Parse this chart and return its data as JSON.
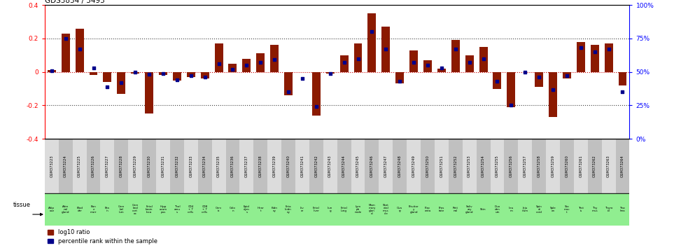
{
  "title": "GDS3834 / 3493",
  "gsm_ids": [
    "GSM373223",
    "GSM373224",
    "GSM373225",
    "GSM373226",
    "GSM373227",
    "GSM373228",
    "GSM373229",
    "GSM373230",
    "GSM373231",
    "GSM373232",
    "GSM373233",
    "GSM373234",
    "GSM373235",
    "GSM373236",
    "GSM373237",
    "GSM373238",
    "GSM373239",
    "GSM373240",
    "GSM373241",
    "GSM373242",
    "GSM373243",
    "GSM373244",
    "GSM373245",
    "GSM373246",
    "GSM373247",
    "GSM373248",
    "GSM373249",
    "GSM373250",
    "GSM373251",
    "GSM373252",
    "GSM373253",
    "GSM373254",
    "GSM373255",
    "GSM373256",
    "GSM373257",
    "GSM373258",
    "GSM373259",
    "GSM373260",
    "GSM373261",
    "GSM373262",
    "GSM373263",
    "GSM373264"
  ],
  "tissues": [
    "Adip\nose",
    "Adre\nnal\ngland",
    "Blad\nder",
    "Bon\ne\nmarr",
    "Bra\nin",
    "Cere\nbel\nlum",
    "Cere\nbral\ncort\nex",
    "Fetal\nbrain\nloca",
    "Hipp\nocam\npus",
    "Thal\namu\ns",
    "CD4\n+ T\ncells",
    "CD8\n+ T\ncells",
    "Cerv\nix",
    "Colo\nn",
    "Epid\ndym\ns",
    "Hear\nt",
    "Kidn\ney",
    "Feta\nlkidn\ney",
    "Liv\ner",
    "Fetal\nliver",
    "Lun\ng",
    "Fetal\nlung",
    "Lym\nph\nnode",
    "Mam\nmary\nglan\nd",
    "Sket\netal\nmus\ncle",
    "Ova\nry",
    "Pituitar\ny\ngland",
    "Plac\nenta",
    "Pros\ntate",
    "Reti\nnal",
    "Saliv\nary\ngland",
    "Skin",
    "Duo\nden\num",
    "Ileu\nm",
    "Jeju\nnum",
    "Spin\nal\ncord",
    "Sple\nen",
    "Sto\nmac\nt",
    "Test\nis",
    "Thy\nmus",
    "Thyro\nid",
    "Trac\nhea"
  ],
  "log10_ratio": [
    0.01,
    0.23,
    0.26,
    -0.02,
    -0.06,
    -0.13,
    -0.01,
    -0.25,
    -0.02,
    -0.05,
    -0.03,
    -0.04,
    0.17,
    0.05,
    0.08,
    0.11,
    0.16,
    -0.14,
    0.0,
    -0.26,
    -0.01,
    0.1,
    0.17,
    0.35,
    0.27,
    -0.07,
    0.13,
    0.07,
    0.02,
    0.19,
    0.1,
    0.15,
    -0.1,
    -0.21,
    0.0,
    -0.09,
    -0.27,
    -0.04,
    0.18,
    0.16,
    0.17,
    -0.08
  ],
  "percentile_rank": [
    51,
    75,
    67,
    53,
    39,
    42,
    50,
    48,
    49,
    44,
    47,
    46,
    56,
    52,
    55,
    57,
    59,
    35,
    45,
    24,
    49,
    57,
    60,
    80,
    67,
    43,
    57,
    55,
    53,
    67,
    57,
    60,
    43,
    25,
    50,
    46,
    37,
    47,
    68,
    65,
    67,
    35
  ],
  "bar_color": "#8B1A00",
  "dot_color": "#00008B",
  "bg_color_light": "#DCDCDC",
  "bg_color_dark": "#C0C0C0",
  "tissue_bg": "#90EE90",
  "zero_line_color": "#CC0000",
  "dotted_line_color": "#404040",
  "chart_bg": "#FFFFFF",
  "ylim": [
    -0.4,
    0.4
  ],
  "yticks": [
    -0.4,
    -0.2,
    0.0,
    0.2,
    0.4
  ],
  "pct_ticks": [
    0,
    25,
    50,
    75,
    100
  ],
  "dotted_levels": [
    0.2,
    -0.2
  ]
}
